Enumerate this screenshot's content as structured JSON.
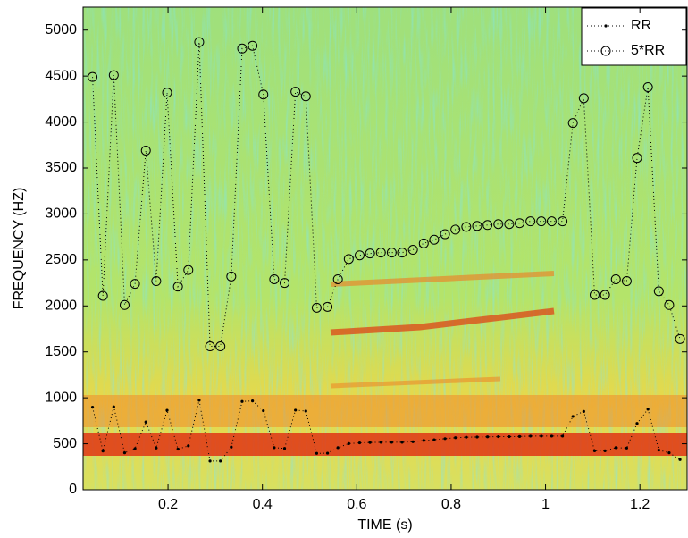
{
  "chart_data": {
    "type": "line",
    "xlabel": "TIME (s)",
    "ylabel": "FREQUENCY (HZ)",
    "x": [
      0.04,
      0.062,
      0.085,
      0.108,
      0.13,
      0.153,
      0.175,
      0.198,
      0.221,
      0.243,
      0.266,
      0.289,
      0.311,
      0.334,
      0.357,
      0.379,
      0.402,
      0.425,
      0.447,
      0.47,
      0.492,
      0.515,
      0.538,
      0.56,
      0.583,
      0.606,
      0.628,
      0.651,
      0.674,
      0.696,
      0.719,
      0.742,
      0.764,
      0.787,
      0.809,
      0.832,
      0.855,
      0.877,
      0.9,
      0.923,
      0.945,
      0.968,
      0.991,
      1.013,
      1.036,
      1.058,
      1.081,
      1.104,
      1.126,
      1.149,
      1.172,
      1.194,
      1.217,
      1.24,
      1.262,
      1.285
    ],
    "series": [
      {
        "name": "RR",
        "color": "#000000",
        "marker": "dot",
        "values": [
          898,
          422,
          902,
          402,
          448,
          738,
          454,
          864,
          442,
          478,
          974,
          312,
          312,
          464,
          960,
          966,
          860,
          458,
          450,
          866,
          856,
          396,
          398,
          458,
          502,
          510,
          514,
          516,
          516,
          516,
          522,
          536,
          544,
          556,
          566,
          572,
          574,
          576,
          578,
          578,
          580,
          584,
          584,
          584,
          584,
          798,
          852,
          424,
          424,
          458,
          454,
          722,
          876,
          432,
          402,
          328
        ]
      },
      {
        "name": "5*RR",
        "color": "#000000",
        "marker": "circle",
        "values": [
          4490,
          2110,
          4510,
          2010,
          2240,
          3690,
          2270,
          4320,
          2210,
          2390,
          4870,
          1560,
          1560,
          2320,
          4800,
          4830,
          4300,
          2290,
          2250,
          4330,
          4280,
          1980,
          1990,
          2290,
          2510,
          2550,
          2570,
          2580,
          2580,
          2580,
          2610,
          2680,
          2720,
          2780,
          2830,
          2860,
          2870,
          2880,
          2890,
          2890,
          2900,
          2920,
          2920,
          2920,
          2920,
          3990,
          4260,
          2120,
          2120,
          2290,
          2270,
          3610,
          4380,
          2160,
          2010,
          1640
        ]
      }
    ],
    "xlim": [
      0.02,
      1.3
    ],
    "xticks": [
      0.2,
      0.4,
      0.6,
      0.8,
      {
        "value": 1,
        "label": "1"
      },
      1.2
    ],
    "ylim": [
      0,
      5250
    ],
    "yticks": [
      0,
      500,
      1000,
      1500,
      2000,
      2500,
      3000,
      3500,
      4000,
      4500,
      5000
    ],
    "legend": "top-right"
  }
}
